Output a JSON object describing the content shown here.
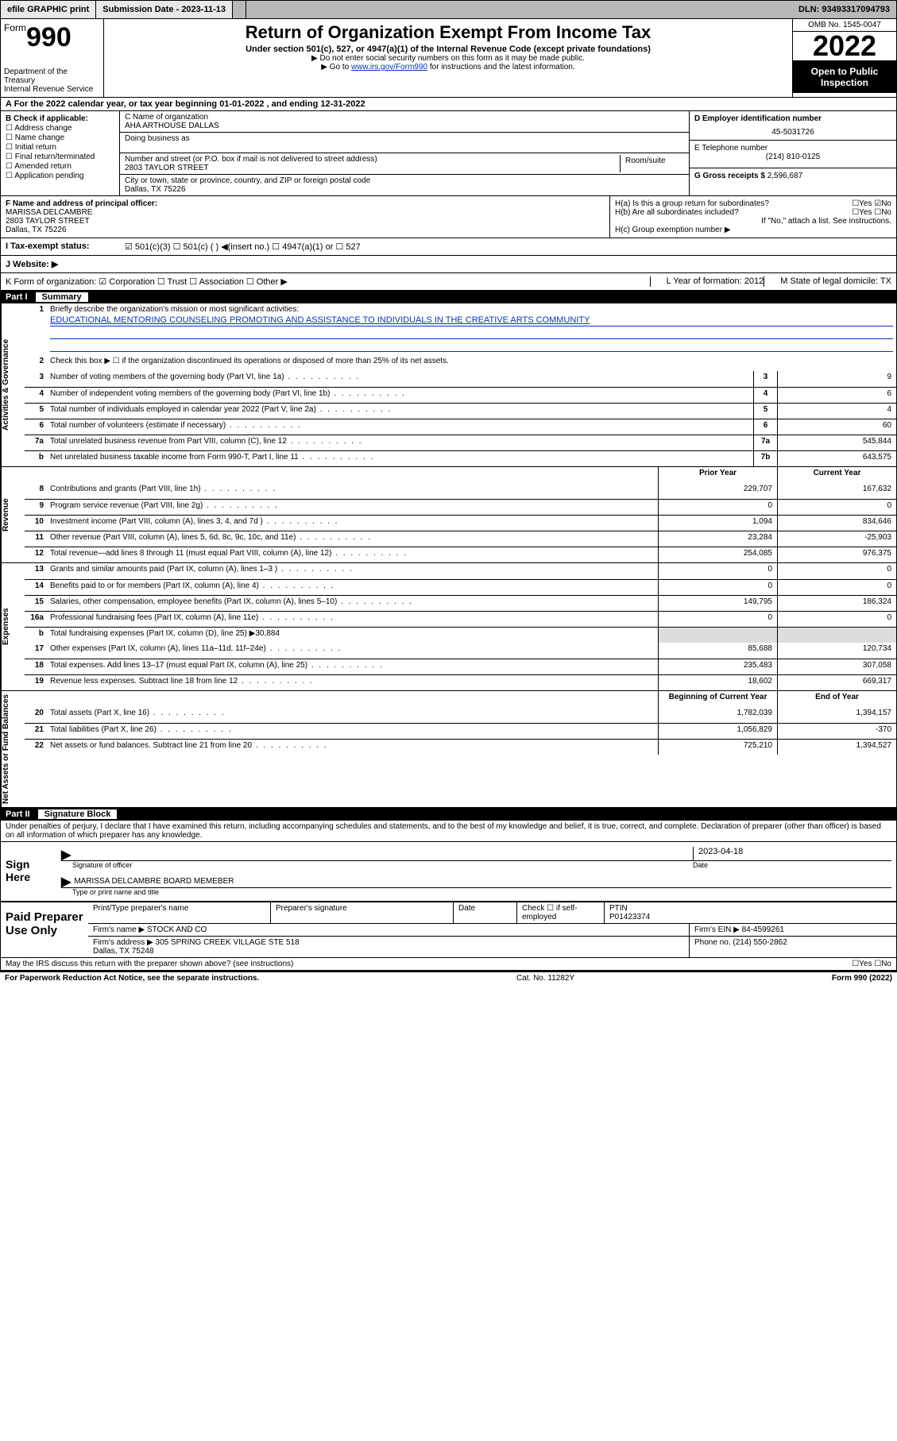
{
  "topbar": {
    "efile": "efile GRAPHIC print",
    "submission_label": "Submission Date - 2023-11-13",
    "dln": "DLN: 93493317094793"
  },
  "header": {
    "form_word": "Form",
    "form_num": "990",
    "dept": "Department of the Treasury\nInternal Revenue Service",
    "title": "Return of Organization Exempt From Income Tax",
    "sub": "Under section 501(c), 527, or 4947(a)(1) of the Internal Revenue Code (except private foundations)",
    "note1": "▶ Do not enter social security numbers on this form as it may be made public.",
    "note2_pre": "▶ Go to ",
    "note2_link": "www.irs.gov/Form990",
    "note2_post": " for instructions and the latest information.",
    "omb": "OMB No. 1545-0047",
    "year": "2022",
    "otp": "Open to Public Inspection"
  },
  "rowA": "A For the 2022 calendar year, or tax year beginning 01-01-2022    , and ending 12-31-2022",
  "colB": {
    "label": "B Check if applicable:",
    "items": [
      "Address change",
      "Name change",
      "Initial return",
      "Final return/terminated",
      "Amended return",
      "Application pending"
    ]
  },
  "colC": {
    "name_lbl": "C Name of organization",
    "name": "AHA ARTHOUSE DALLAS",
    "dba_lbl": "Doing business as",
    "addr_lbl": "Number and street (or P.O. box if mail is not delivered to street address)",
    "room_lbl": "Room/suite",
    "addr": "2803 TAYLOR STREET",
    "city_lbl": "City or town, state or province, country, and ZIP or foreign postal code",
    "city": "Dallas, TX  75226"
  },
  "colD": {
    "lbl": "D Employer identification number",
    "val": "45-5031726"
  },
  "colE": {
    "lbl": "E Telephone number",
    "val": "(214) 810-0125"
  },
  "colG": {
    "lbl": "G Gross receipts $",
    "val": "2,596,687"
  },
  "colF": {
    "lbl": "F Name and address of principal officer:",
    "name": "MARISSA DELCAMBRE",
    "addr1": "2803 TAYLOR STREET",
    "addr2": "Dallas, TX  75226"
  },
  "colH": {
    "a": "H(a)  Is this a group return for subordinates?",
    "a_ans": "☐Yes ☑No",
    "b": "H(b)  Are all subordinates included?",
    "b_ans": "☐Yes ☐No",
    "b_note": "If \"No,\" attach a list. See instructions.",
    "c": "H(c)  Group exemption number ▶"
  },
  "rowI": {
    "lbl": "I    Tax-exempt status:",
    "opts": "☑ 501(c)(3)   ☐ 501(c) (  ) ◀(insert no.)    ☐ 4947(a)(1) or  ☐ 527"
  },
  "rowJ": {
    "lbl": "J    Website: ▶"
  },
  "rowK": {
    "lbl": "K Form of organization:  ☑ Corporation  ☐ Trust  ☐ Association  ☐ Other ▶",
    "yof": "L Year of formation: 2012",
    "dom": "M State of legal domicile: TX"
  },
  "part1": {
    "no": "Part I",
    "title": "Summary"
  },
  "vtabs": {
    "act": "Activities & Governance",
    "rev": "Revenue",
    "exp": "Expenses",
    "net": "Net Assets or Fund Balances"
  },
  "s1": {
    "lbl": "Briefly describe the organization's mission or most significant activities:",
    "mission": "EDUCATIONAL MENTORING COUNSELING PROMOTING AND ASSISTANCE TO INDIVIDUALS IN THE CREATIVE ARTS COMMUNITY"
  },
  "s2": "Check this box ▶ ☐  if the organization discontinued its operations or disposed of more than 25% of its net assets.",
  "lines_act": [
    {
      "n": "3",
      "d": "Number of voting members of the governing body (Part VI, line 1a)",
      "b": "3",
      "v": "9"
    },
    {
      "n": "4",
      "d": "Number of independent voting members of the governing body (Part VI, line 1b)",
      "b": "4",
      "v": "6"
    },
    {
      "n": "5",
      "d": "Total number of individuals employed in calendar year 2022 (Part V, line 2a)",
      "b": "5",
      "v": "4"
    },
    {
      "n": "6",
      "d": "Total number of volunteers (estimate if necessary)",
      "b": "6",
      "v": "60"
    },
    {
      "n": "7a",
      "d": "Total unrelated business revenue from Part VIII, column (C), line 12",
      "b": "7a",
      "v": "545,844"
    },
    {
      "n": "b",
      "d": "Net unrelated business taxable income from Form 990-T, Part I, line 11",
      "b": "7b",
      "v": "643,575"
    }
  ],
  "colhdr": {
    "py": "Prior Year",
    "cy": "Current Year"
  },
  "lines_rev": [
    {
      "n": "8",
      "d": "Contributions and grants (Part VIII, line 1h)",
      "p": "229,707",
      "c": "167,632"
    },
    {
      "n": "9",
      "d": "Program service revenue (Part VIII, line 2g)",
      "p": "0",
      "c": "0"
    },
    {
      "n": "10",
      "d": "Investment income (Part VIII, column (A), lines 3, 4, and 7d )",
      "p": "1,094",
      "c": "834,646"
    },
    {
      "n": "11",
      "d": "Other revenue (Part VIII, column (A), lines 5, 6d, 8c, 9c, 10c, and 11e)",
      "p": "23,284",
      "c": "-25,903"
    },
    {
      "n": "12",
      "d": "Total revenue—add lines 8 through 11 (must equal Part VIII, column (A), line 12)",
      "p": "254,085",
      "c": "976,375"
    }
  ],
  "lines_exp": [
    {
      "n": "13",
      "d": "Grants and similar amounts paid (Part IX, column (A), lines 1–3 )",
      "p": "0",
      "c": "0"
    },
    {
      "n": "14",
      "d": "Benefits paid to or for members (Part IX, column (A), line 4)",
      "p": "0",
      "c": "0"
    },
    {
      "n": "15",
      "d": "Salaries, other compensation, employee benefits (Part IX, column (A), lines 5–10)",
      "p": "149,795",
      "c": "186,324"
    },
    {
      "n": "16a",
      "d": "Professional fundraising fees (Part IX, column (A), line 11e)",
      "p": "0",
      "c": "0"
    }
  ],
  "line16b": {
    "n": "b",
    "d": "Total fundraising expenses (Part IX, column (D), line 25) ▶30,884"
  },
  "lines_exp2": [
    {
      "n": "17",
      "d": "Other expenses (Part IX, column (A), lines 11a–11d, 11f–24e)",
      "p": "85,688",
      "c": "120,734"
    },
    {
      "n": "18",
      "d": "Total expenses. Add lines 13–17 (must equal Part IX, column (A), line 25)",
      "p": "235,483",
      "c": "307,058"
    },
    {
      "n": "19",
      "d": "Revenue less expenses. Subtract line 18 from line 12",
      "p": "18,602",
      "c": "669,317"
    }
  ],
  "colhdr2": {
    "py": "Beginning of Current Year",
    "cy": "End of Year"
  },
  "lines_net": [
    {
      "n": "20",
      "d": "Total assets (Part X, line 16)",
      "p": "1,782,039",
      "c": "1,394,157"
    },
    {
      "n": "21",
      "d": "Total liabilities (Part X, line 26)",
      "p": "1,056,829",
      "c": "-370"
    },
    {
      "n": "22",
      "d": "Net assets or fund balances. Subtract line 21 from line 20",
      "p": "725,210",
      "c": "1,394,527"
    }
  ],
  "part2": {
    "no": "Part II",
    "title": "Signature Block"
  },
  "decl": "Under penalties of perjury, I declare that I have examined this return, including accompanying schedules and statements, and to the best of my knowledge and belief, it is true, correct, and complete. Declaration of preparer (other than officer) is based on all information of which preparer has any knowledge.",
  "sign": {
    "here": "Sign Here",
    "sig_lbl": "Signature of officer",
    "date_lbl": "Date",
    "date": "2023-04-18",
    "name": "MARISSA DELCAMBRE  BOARD MEMEBER",
    "name_lbl": "Type or print name and title"
  },
  "prep": {
    "left": "Paid Preparer Use Only",
    "r1": {
      "c1": "Print/Type preparer's name",
      "c2": "Preparer's signature",
      "c3": "Date",
      "c4": "Check ☐ if self-employed",
      "c5": "PTIN\nP01423374"
    },
    "r2": {
      "c1": "Firm's name    ▶ STOCK AND CO",
      "c2": "Firm's EIN ▶ 84-4599261"
    },
    "r3": {
      "c1": "Firm's address ▶ 305 SPRING CREEK VILLAGE STE 518\n                           Dallas, TX  75248",
      "c2": "Phone no. (214) 550-2862"
    }
  },
  "may": {
    "t": "May the IRS discuss this return with the preparer shown above? (see instructions)",
    "a": "☐Yes  ☐No"
  },
  "footer": {
    "l": "For Paperwork Reduction Act Notice, see the separate instructions.",
    "m": "Cat. No. 11282Y",
    "r": "Form 990 (2022)"
  }
}
